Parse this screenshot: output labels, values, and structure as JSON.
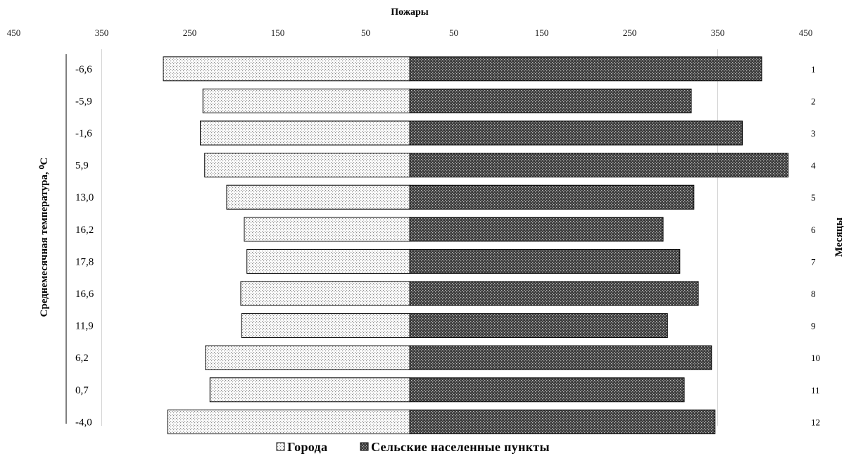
{
  "chart_data": {
    "type": "bar",
    "orientation": "horizontal-butterfly",
    "title": "Пожары",
    "xlim": [
      -450,
      450
    ],
    "x_ticks": [
      -450,
      -350,
      -250,
      -150,
      -50,
      50,
      150,
      250,
      350,
      450
    ],
    "x_tick_labels": [
      "450",
      "350",
      "250",
      "150",
      "50",
      "50",
      "150",
      "250",
      "350",
      "450"
    ],
    "left_axis_label": "Среднемесячная температура, ⁰С",
    "right_axis_label": "Месяцы",
    "categories": [
      "1",
      "2",
      "3",
      "4",
      "5",
      "6",
      "7",
      "8",
      "9",
      "10",
      "11",
      "12"
    ],
    "temperatures": [
      "-6,6",
      "-5,9",
      "-1,6",
      "5,9",
      "13,0",
      "16,2",
      "17,8",
      "16,6",
      "11,9",
      "6,2",
      "0,7",
      "-4,0"
    ],
    "series": [
      {
        "name": "Города",
        "side": "left",
        "color": "#e6e6e6",
        "values": [
          280,
          235,
          238,
          233,
          208,
          188,
          185,
          192,
          191,
          232,
          227,
          275
        ]
      },
      {
        "name": "Сельские населенные пункты",
        "side": "right",
        "color": "#5a5a5a",
        "values": [
          400,
          320,
          378,
          430,
          323,
          288,
          307,
          328,
          293,
          343,
          312,
          347
        ]
      }
    ],
    "grid": false,
    "legend": "bottom-center"
  }
}
